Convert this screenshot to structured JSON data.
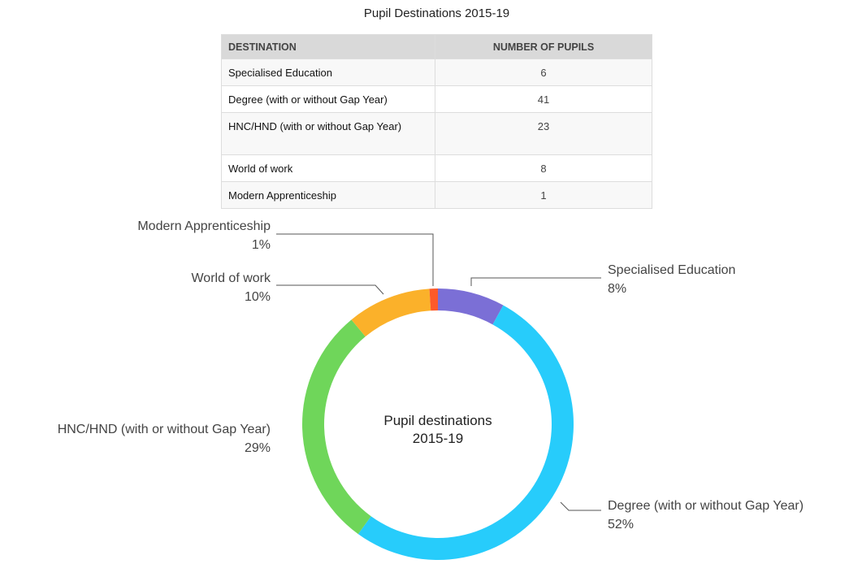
{
  "table": {
    "title": "Pupil Destinations 2015-19",
    "header": [
      "DESTINATION",
      "NUMBER OF PUPILS"
    ],
    "rows": [
      [
        "Specialised Education",
        6
      ],
      [
        "Degree (with or without Gap Year)",
        41
      ],
      [
        "HNC/HND (with or without Gap Year)",
        23
      ],
      [
        "World of work",
        8
      ],
      [
        "Modern Apprenticeship",
        1
      ]
    ]
  },
  "chart_data": {
    "type": "pie",
    "title": [
      "Pupil destinations",
      "2015-19"
    ],
    "categories": [
      "Specialised Education",
      "Degree (with or without Gap Year)",
      "HNC/HND (with or without Gap Year)",
      "World of work",
      "Modern Apprenticeship"
    ],
    "values": [
      8,
      52,
      29,
      10,
      1
    ],
    "value_labels": [
      "8%",
      "52%",
      "29%",
      "10%",
      "1%"
    ],
    "colors": [
      "#7b6fd6",
      "#27ccfb",
      "#6fd65a",
      "#fbb12a",
      "#fc5a2a"
    ]
  }
}
